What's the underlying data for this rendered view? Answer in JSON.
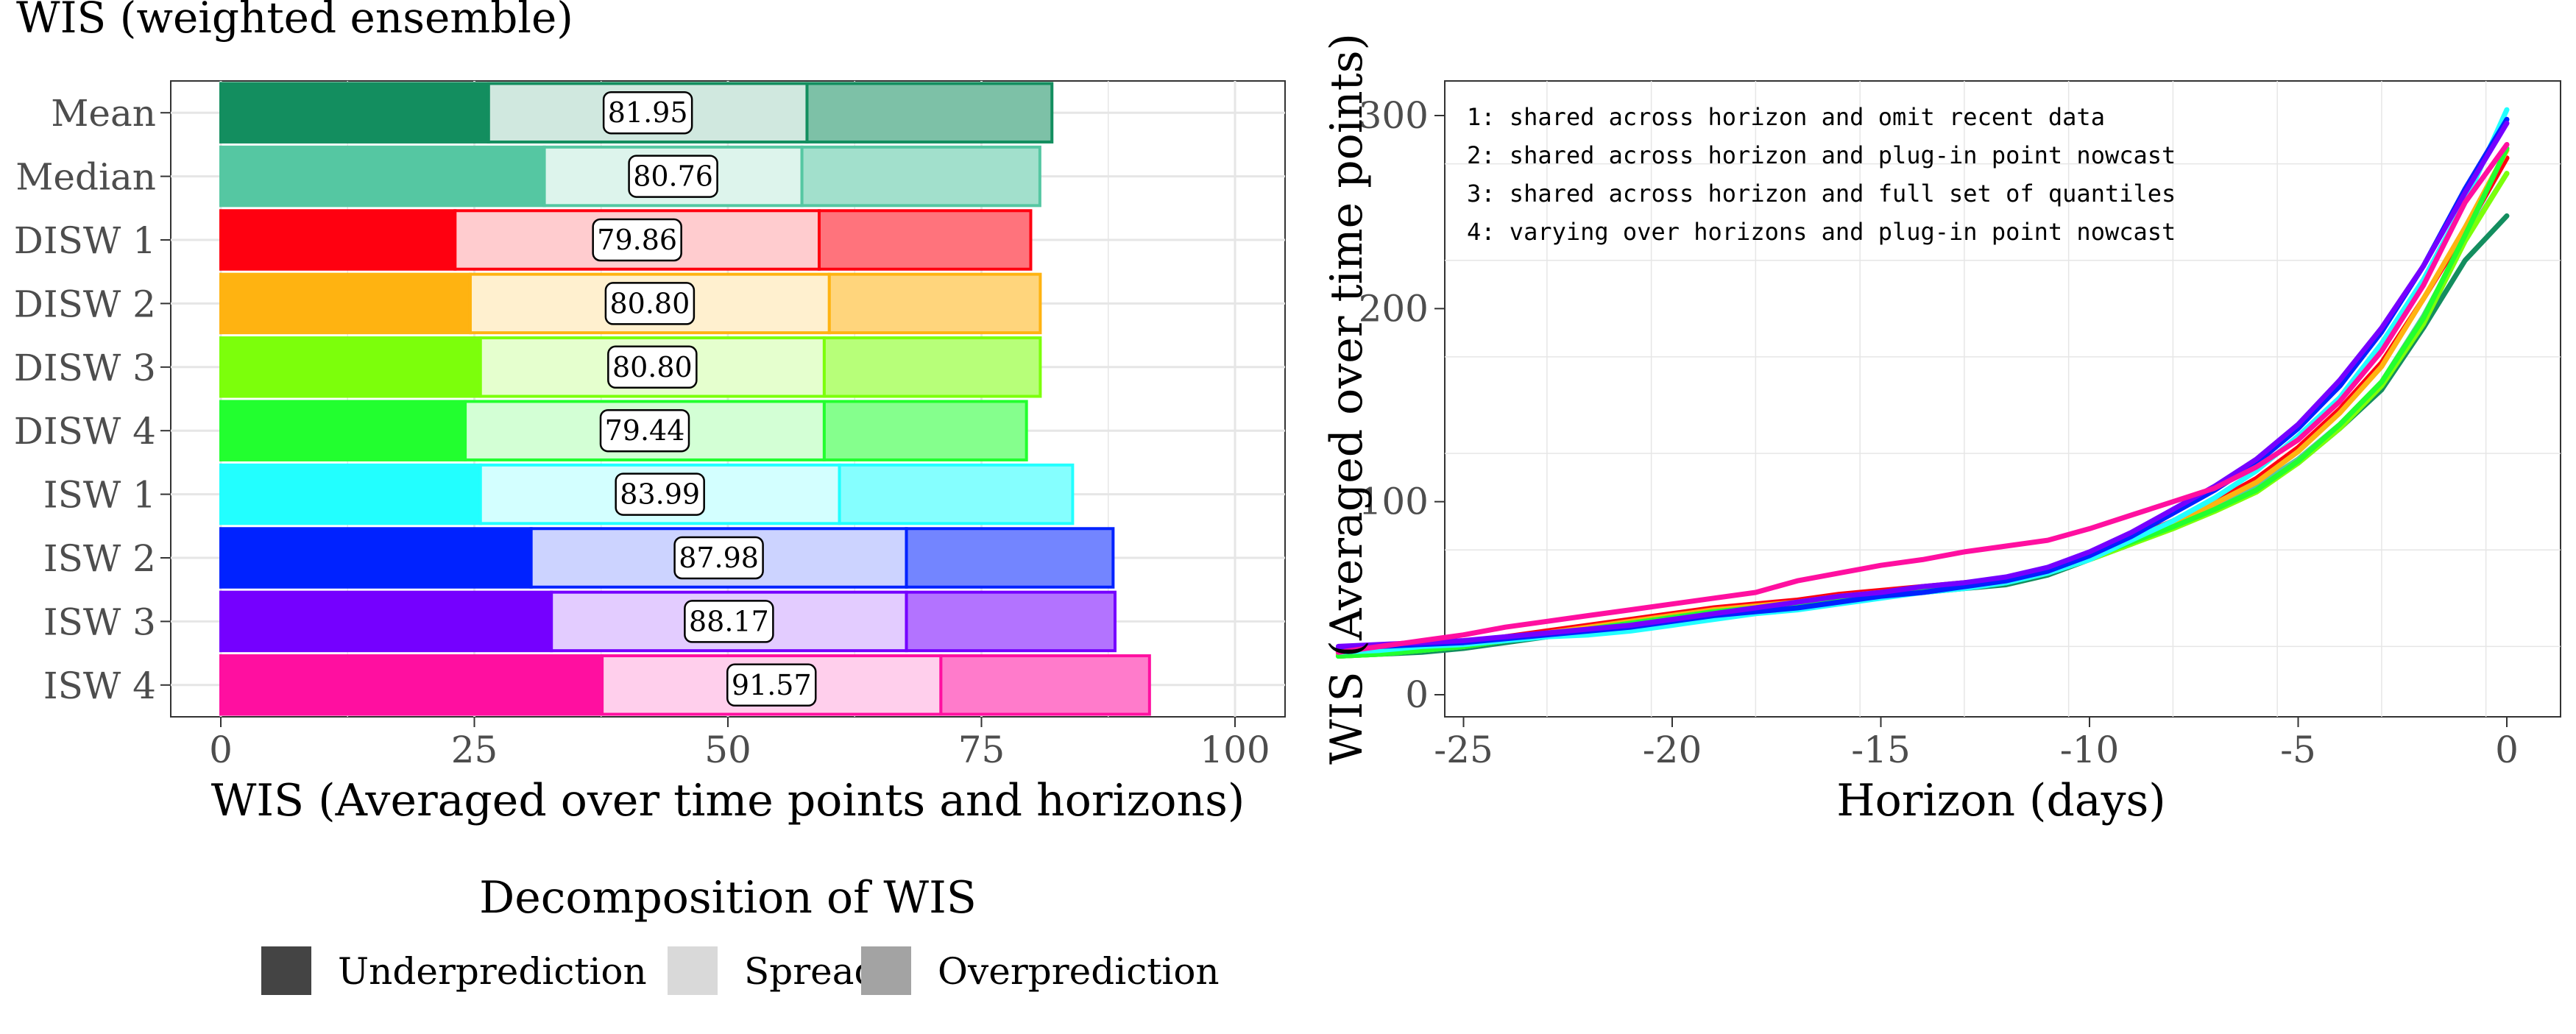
{
  "title": "WIS (weighted ensemble)",
  "legend": {
    "title": "Decomposition of WIS",
    "items": [
      {
        "key": "under",
        "label": "Underprediction",
        "color": "#444444"
      },
      {
        "key": "spread",
        "label": "Spread",
        "color": "#d9d9d9"
      },
      {
        "key": "over",
        "label": "Overprediction",
        "color": "#a3a3a3"
      }
    ]
  },
  "chart_data": [
    {
      "type": "bar",
      "orientation": "horizontal",
      "stacked": true,
      "xlabel": "WIS (Averaged over time points and horizons)",
      "xlim": [
        0,
        100
      ],
      "xticks": [
        0,
        25,
        50,
        75,
        100
      ],
      "grid": true,
      "categories": [
        "Mean",
        "Median",
        "DISW 1",
        "DISW 2",
        "DISW 3",
        "DISW 4",
        "ISW 1",
        "ISW 2",
        "ISW 3",
        "ISW 4"
      ],
      "colors": [
        "#138e5f",
        "#55c7a2",
        "#ff0010",
        "#ffb311",
        "#7cff0b",
        "#22ff2f",
        "#22ffff",
        "#0022ff",
        "#7500ff",
        "#ff0fa0"
      ],
      "series": [
        {
          "name": "Underprediction",
          "values": [
            26.4,
            31.9,
            23.1,
            24.6,
            25.6,
            24.1,
            25.6,
            30.6,
            32.6,
            37.6
          ]
        },
        {
          "name": "Spread",
          "values": [
            31.4,
            25.4,
            35.9,
            35.4,
            33.9,
            35.4,
            35.4,
            37.0,
            35.0,
            33.4
          ]
        },
        {
          "name": "Overprediction",
          "values": [
            24.15,
            23.46,
            20.86,
            20.8,
            21.3,
            19.94,
            22.99,
            20.38,
            20.57,
            20.57
          ]
        }
      ],
      "totals": [
        "81.95",
        "80.76",
        "79.86",
        "80.80",
        "80.80",
        "79.44",
        "83.99",
        "87.98",
        "88.17",
        "91.57"
      ]
    },
    {
      "type": "line",
      "xlabel": "Horizon (days)",
      "ylabel": "WIS (Averaged over time points)",
      "xlim": [
        -29,
        2
      ],
      "ylim": [
        -5,
        318
      ],
      "xticks": [
        -25,
        -20,
        -15,
        -10,
        -5,
        0
      ],
      "yticks": [
        0,
        100,
        200,
        300
      ],
      "grid": true,
      "annotations": [
        "1: shared across horizon and omit recent data",
        "2: shared across horizon and plug-in point nowcast",
        "3: shared across horizon and full set of quantiles",
        "4: varying over horizons and plug-in point nowcast"
      ],
      "x": [
        -28,
        -27,
        -26,
        -25,
        -24,
        -23,
        -22,
        -21,
        -20,
        -19,
        -18,
        -17,
        -16,
        -15,
        -14,
        -13,
        -12,
        -11,
        -10,
        -9,
        -8,
        -7,
        -6,
        -5,
        -4,
        -3,
        -2,
        -1,
        0
      ],
      "series": [
        {
          "color": "#138e5f",
          "values": [
            20,
            21,
            22,
            24,
            27,
            30,
            33,
            36,
            39,
            42,
            44,
            46,
            49,
            51,
            53,
            55,
            57,
            62,
            70,
            78,
            87,
            96,
            106,
            120,
            138,
            158,
            190,
            225,
            248
          ]
        },
        {
          "color": "#55c7a2",
          "values": [
            21,
            22,
            23,
            25,
            28,
            31,
            34,
            37,
            40,
            43,
            45,
            47,
            50,
            52,
            54,
            56,
            58,
            63,
            71,
            79,
            88,
            97,
            108,
            122,
            140,
            162,
            196,
            236,
            270
          ]
        },
        {
          "color": "#ff0010",
          "values": [
            22,
            23,
            25,
            27,
            30,
            33,
            36,
            39,
            42,
            45,
            47,
            49,
            52,
            54,
            56,
            58,
            60,
            65,
            73,
            81,
            90,
            100,
            112,
            128,
            148,
            172,
            205,
            240,
            278
          ]
        },
        {
          "color": "#ffb311",
          "values": [
            21,
            22,
            24,
            26,
            29,
            32,
            35,
            38,
            41,
            44,
            46,
            48,
            51,
            53,
            55,
            57,
            59,
            64,
            72,
            80,
            89,
            99,
            110,
            126,
            146,
            170,
            205,
            242,
            282
          ]
        },
        {
          "color": "#7cff0b",
          "values": [
            20,
            21,
            23,
            25,
            28,
            31,
            34,
            37,
            40,
            43,
            45,
            47,
            50,
            52,
            54,
            56,
            58,
            63,
            70,
            78,
            86,
            95,
            105,
            120,
            138,
            160,
            192,
            235,
            270
          ]
        },
        {
          "color": "#22ff2f",
          "values": [
            20,
            21,
            23,
            25,
            28,
            31,
            34,
            37,
            40,
            43,
            45,
            47,
            50,
            52,
            54,
            56,
            58,
            63,
            71,
            79,
            87,
            96,
            106,
            121,
            140,
            162,
            195,
            238,
            283
          ]
        },
        {
          "color": "#22ffff",
          "values": [
            22,
            23,
            25,
            26,
            28,
            30,
            31,
            33,
            36,
            39,
            42,
            44,
            47,
            50,
            53,
            55,
            58,
            63,
            70,
            80,
            90,
            102,
            116,
            134,
            154,
            182,
            215,
            255,
            303
          ]
        },
        {
          "color": "#0022ff",
          "values": [
            24,
            25,
            26,
            27,
            29,
            31,
            33,
            35,
            38,
            41,
            43,
            45,
            48,
            51,
            53,
            56,
            59,
            64,
            72,
            82,
            94,
            106,
            120,
            138,
            160,
            188,
            222,
            262,
            298
          ]
        },
        {
          "color": "#7500ff",
          "values": [
            25,
            26,
            27,
            28,
            30,
            32,
            34,
            36,
            39,
            42,
            45,
            48,
            51,
            53,
            56,
            58,
            61,
            66,
            74,
            84,
            96,
            108,
            122,
            140,
            163,
            190,
            222,
            260,
            296
          ]
        },
        {
          "color": "#ff0fa0",
          "values": [
            22,
            25,
            28,
            31,
            35,
            38,
            41,
            44,
            47,
            50,
            53,
            59,
            63,
            67,
            70,
            74,
            77,
            80,
            86,
            93,
            100,
            107,
            118,
            132,
            152,
            178,
            212,
            255,
            285
          ]
        }
      ]
    }
  ]
}
